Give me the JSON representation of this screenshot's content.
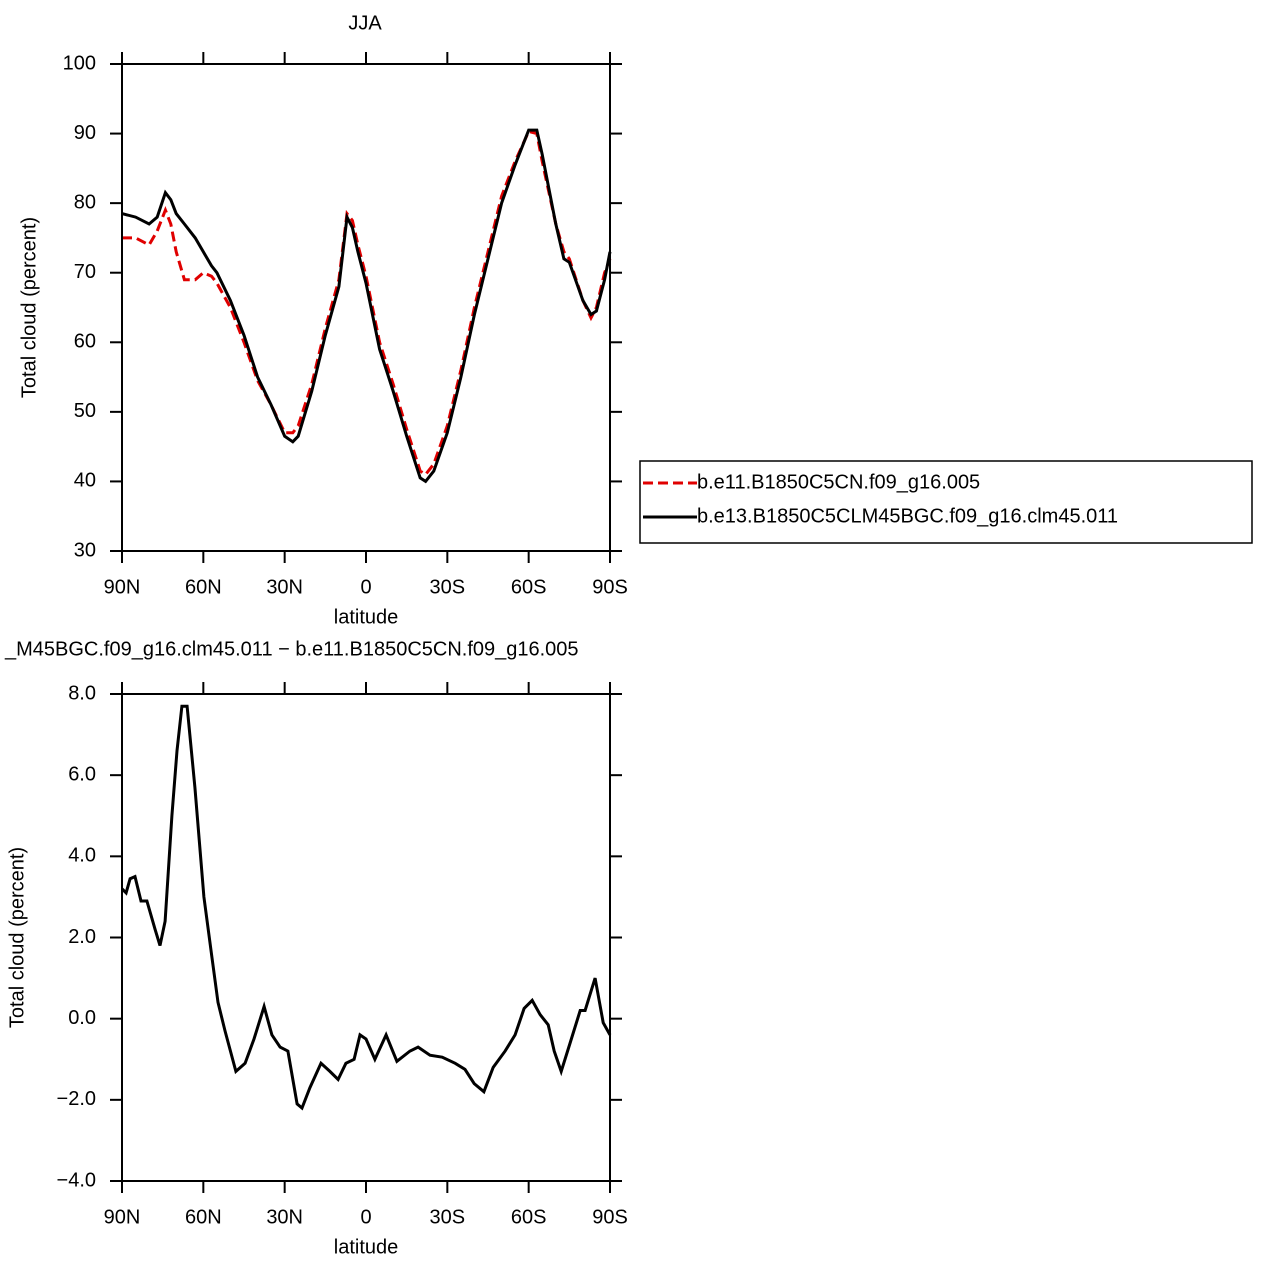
{
  "chart_data": [
    {
      "type": "line",
      "title": "JJA",
      "xlabel": "latitude",
      "ylabel": "Total cloud (percent)",
      "xlim": [
        90,
        -90
      ],
      "xticks": [
        {
          "value": 90,
          "label": "90N"
        },
        {
          "value": 60,
          "label": "60N"
        },
        {
          "value": 30,
          "label": "30N"
        },
        0,
        {
          "value": -30,
          "label": "30S"
        },
        {
          "value": -60,
          "label": "60S"
        },
        {
          "value": -90,
          "label": "90S"
        }
      ],
      "ylim": [
        30,
        100
      ],
      "yticks": [
        30,
        40,
        50,
        60,
        70,
        80,
        90,
        100
      ],
      "x": [
        90,
        85,
        80,
        77,
        74,
        72,
        70,
        67,
        63,
        60,
        57,
        55,
        50,
        45,
        40,
        35,
        30,
        27,
        25,
        20,
        15,
        10,
        7,
        5,
        3,
        0,
        -5,
        -10,
        -15,
        -20,
        -22,
        -25,
        -30,
        -35,
        -40,
        -45,
        -50,
        -55,
        -60,
        -63,
        -65,
        -70,
        -73,
        -75,
        -80,
        -83,
        -85,
        -88,
        -90
      ],
      "series": [
        {
          "name": "b.e11.B1850C5CN.f09_g16.005",
          "color": "#e00000",
          "line_style": "dashed",
          "values": [
            75,
            75,
            74,
            76,
            79,
            77,
            73,
            69,
            69,
            70,
            69.5,
            68.5,
            65,
            60,
            54.5,
            51,
            47,
            47,
            48,
            54,
            62,
            69,
            78.5,
            77.5,
            74,
            69.5,
            60,
            54,
            47.5,
            41.5,
            41,
            42.5,
            48,
            56,
            65,
            73,
            81,
            86,
            90.3,
            90,
            86,
            77,
            73,
            72,
            66,
            63.5,
            65,
            70,
            72
          ]
        },
        {
          "name": "b.e13.B1850C5CLM45BGC.f09_g16.clm45.011",
          "color": "#000000",
          "line_style": "solid",
          "values": [
            78.5,
            78,
            77,
            78,
            81.5,
            80.5,
            78.5,
            77,
            75,
            73,
            71,
            70,
            66,
            61,
            55,
            51,
            46.5,
            45.7,
            46.5,
            53,
            61,
            68,
            78,
            76.5,
            73,
            68.5,
            59,
            53,
            46.5,
            40.5,
            40,
            41.5,
            47,
            55,
            64,
            72,
            80,
            85.5,
            90.5,
            90.5,
            87,
            77,
            72,
            71.5,
            66,
            64,
            64.5,
            69,
            73
          ]
        }
      ]
    },
    {
      "type": "line",
      "title": "_M45BGC.f09_g16.clm45.011 − b.e11.B1850C5CN.f09_g16.005",
      "xlabel": "latitude",
      "ylabel": "Total cloud (percent)",
      "xlim": [
        90,
        -90
      ],
      "xticks": [
        {
          "value": 90,
          "label": "90N"
        },
        {
          "value": 60,
          "label": "60N"
        },
        {
          "value": 30,
          "label": "30N"
        },
        0,
        {
          "value": -30,
          "label": "30S"
        },
        {
          "value": -60,
          "label": "60S"
        },
        {
          "value": -90,
          "label": "90S"
        }
      ],
      "ylim": [
        -4,
        8
      ],
      "yticks": [
        {
          "value": -4,
          "label": "−4.0"
        },
        {
          "value": -2,
          "label": "−2.0"
        },
        {
          "value": 0,
          "label": "0.0"
        },
        {
          "value": 2,
          "label": "2.0"
        },
        {
          "value": 4,
          "label": "4.0"
        },
        {
          "value": 6,
          "label": "6.0"
        },
        {
          "value": 8,
          "label": "8.0"
        }
      ],
      "x": [
        90,
        88.5,
        87,
        85.2,
        83,
        80.8,
        77.8,
        76,
        74.1,
        71.6,
        69.7,
        67.9,
        66,
        63.1,
        59.8,
        56.8,
        54.6,
        52,
        48,
        44.6,
        41.3,
        37.6,
        34.7,
        31.7,
        28.8,
        25.4,
        23.6,
        20.7,
        16.6,
        13.3,
        10.3,
        7.4,
        4.4,
        2.2,
        0,
        -3.3,
        -7.4,
        -11.4,
        -16.2,
        -19.2,
        -23.6,
        -28.1,
        -32.9,
        -36.5,
        -39.9,
        -43.5,
        -46.9,
        -51.3,
        -55,
        -58.3,
        -61.3,
        -64.2,
        -67.2,
        -69.4,
        -72,
        -75.3,
        -79,
        -80.8,
        -84.5,
        -87.5,
        -90
      ],
      "series": [
        {
          "color": "#000000",
          "line_style": "solid",
          "values": [
            3.2,
            3.1,
            3.45,
            3.5,
            2.9,
            2.9,
            2.2,
            1.8,
            2.4,
            5,
            6.6,
            7.7,
            7.7,
            5.7,
            3,
            1.5,
            0.4,
            -0.3,
            -1.3,
            -1.1,
            -0.5,
            0.3,
            -0.4,
            -0.7,
            -0.8,
            -2.1,
            -2.2,
            -1.7,
            -1.1,
            -1.3,
            -1.5,
            -1.1,
            -1.0,
            -0.4,
            -0.5,
            -1.0,
            -0.4,
            -1.05,
            -0.8,
            -0.7,
            -0.9,
            -0.95,
            -1.1,
            -1.25,
            -1.6,
            -1.8,
            -1.2,
            -0.8,
            -0.4,
            0.25,
            0.45,
            0.1,
            -0.15,
            -0.8,
            -1.3,
            -0.6,
            0.2,
            0.2,
            1.0,
            -0.1,
            -0.4
          ]
        }
      ]
    }
  ]
}
